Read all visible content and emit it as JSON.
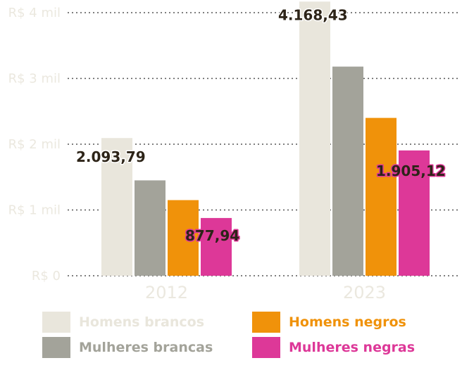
{
  "chart_data": {
    "type": "bar",
    "categories": [
      "2012",
      "2023"
    ],
    "series": [
      {
        "name": "Homens brancos",
        "color": "#e9e6dc",
        "values": [
          2093.79,
          4168.43
        ]
      },
      {
        "name": "Mulheres brancas",
        "color": "#a3a39a",
        "values": [
          1450,
          3180
        ]
      },
      {
        "name": "Homens negros",
        "color": "#f0920a",
        "values": [
          1150,
          2400
        ]
      },
      {
        "name": "Mulheres negras",
        "color": "#dd3898",
        "values": [
          877.94,
          1905.12
        ]
      }
    ],
    "data_labels": [
      {
        "series": 0,
        "category": 0,
        "text": "2.093,79"
      },
      {
        "series": 3,
        "category": 0,
        "text": "877,94"
      },
      {
        "series": 0,
        "category": 1,
        "text": "4.168,43"
      },
      {
        "series": 3,
        "category": 1,
        "text": "1.905,12"
      }
    ],
    "y_ticks": [
      {
        "value": 0,
        "label": "R$ 0"
      },
      {
        "value": 1000,
        "label": "R$ 1 mil"
      },
      {
        "value": 2000,
        "label": "R$ 2 mil"
      },
      {
        "value": 3000,
        "label": "R$ 3 mil"
      },
      {
        "value": 4000,
        "label": "R$ 4 mil"
      }
    ],
    "ylim": [
      0,
      4000
    ],
    "grid": "dotted horizontal",
    "legend_position": "bottom",
    "title": "",
    "xlabel": "",
    "ylabel": ""
  },
  "colors": {
    "axis_text": "#ebe8df",
    "grid": "#555555",
    "label_text": "#2d2418"
  }
}
